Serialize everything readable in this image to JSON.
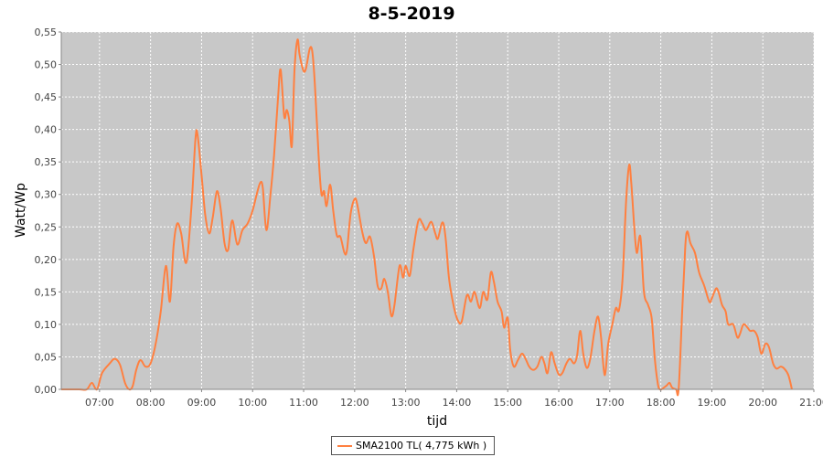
{
  "chart_data": {
    "type": "line",
    "title": "8-5-2019",
    "xlabel": "tijd",
    "ylabel": "Watt/Wp",
    "xlim": [
      6.25,
      21.0
    ],
    "ylim": [
      0,
      0.55
    ],
    "x_ticks": [
      "07:00",
      "08:00",
      "09:00",
      "10:00",
      "11:00",
      "12:00",
      "13:00",
      "14:00",
      "15:00",
      "16:00",
      "17:00",
      "18:00",
      "19:00",
      "20:00",
      "21:00"
    ],
    "y_ticks": [
      "0,00",
      "0,05",
      "0,10",
      "0,15",
      "0,20",
      "0,25",
      "0,30",
      "0,35",
      "0,40",
      "0,45",
      "0,50",
      "0,55"
    ],
    "grid": true,
    "legend_position": "bottom",
    "series": [
      {
        "name": "SMA2100 TL( 4,775 kWh )",
        "color": "#ff8040",
        "points": [
          [
            6.25,
            0.0
          ],
          [
            6.6,
            0.0
          ],
          [
            6.75,
            0.0
          ],
          [
            6.85,
            0.01
          ],
          [
            6.95,
            0.0
          ],
          [
            7.05,
            0.025
          ],
          [
            7.2,
            0.04
          ],
          [
            7.3,
            0.047
          ],
          [
            7.4,
            0.038
          ],
          [
            7.5,
            0.01
          ],
          [
            7.58,
            0.0
          ],
          [
            7.65,
            0.005
          ],
          [
            7.72,
            0.03
          ],
          [
            7.8,
            0.045
          ],
          [
            7.9,
            0.035
          ],
          [
            8.0,
            0.04
          ],
          [
            8.1,
            0.07
          ],
          [
            8.2,
            0.12
          ],
          [
            8.3,
            0.19
          ],
          [
            8.38,
            0.135
          ],
          [
            8.45,
            0.22
          ],
          [
            8.52,
            0.255
          ],
          [
            8.6,
            0.24
          ],
          [
            8.7,
            0.195
          ],
          [
            8.8,
            0.28
          ],
          [
            8.88,
            0.385
          ],
          [
            8.92,
            0.392
          ],
          [
            9.0,
            0.33
          ],
          [
            9.07,
            0.27
          ],
          [
            9.15,
            0.24
          ],
          [
            9.22,
            0.265
          ],
          [
            9.3,
            0.305
          ],
          [
            9.37,
            0.28
          ],
          [
            9.45,
            0.225
          ],
          [
            9.52,
            0.215
          ],
          [
            9.6,
            0.26
          ],
          [
            9.7,
            0.223
          ],
          [
            9.8,
            0.245
          ],
          [
            9.9,
            0.255
          ],
          [
            10.0,
            0.275
          ],
          [
            10.08,
            0.3
          ],
          [
            10.15,
            0.318
          ],
          [
            10.2,
            0.31
          ],
          [
            10.27,
            0.245
          ],
          [
            10.35,
            0.3
          ],
          [
            10.42,
            0.36
          ],
          [
            10.5,
            0.45
          ],
          [
            10.55,
            0.492
          ],
          [
            10.62,
            0.42
          ],
          [
            10.67,
            0.43
          ],
          [
            10.72,
            0.413
          ],
          [
            10.77,
            0.375
          ],
          [
            10.82,
            0.49
          ],
          [
            10.88,
            0.538
          ],
          [
            10.92,
            0.515
          ],
          [
            11.0,
            0.49
          ],
          [
            11.05,
            0.495
          ],
          [
            11.12,
            0.524
          ],
          [
            11.17,
            0.52
          ],
          [
            11.22,
            0.47
          ],
          [
            11.3,
            0.35
          ],
          [
            11.35,
            0.3
          ],
          [
            11.4,
            0.305
          ],
          [
            11.45,
            0.282
          ],
          [
            11.52,
            0.315
          ],
          [
            11.58,
            0.275
          ],
          [
            11.65,
            0.237
          ],
          [
            11.72,
            0.235
          ],
          [
            11.8,
            0.21
          ],
          [
            11.85,
            0.215
          ],
          [
            11.92,
            0.27
          ],
          [
            12.0,
            0.293
          ],
          [
            12.05,
            0.285
          ],
          [
            12.15,
            0.242
          ],
          [
            12.22,
            0.225
          ],
          [
            12.3,
            0.235
          ],
          [
            12.38,
            0.205
          ],
          [
            12.45,
            0.16
          ],
          [
            12.52,
            0.155
          ],
          [
            12.58,
            0.17
          ],
          [
            12.65,
            0.15
          ],
          [
            12.72,
            0.113
          ],
          [
            12.78,
            0.13
          ],
          [
            12.88,
            0.19
          ],
          [
            12.95,
            0.172
          ],
          [
            13.0,
            0.19
          ],
          [
            13.08,
            0.175
          ],
          [
            13.15,
            0.215
          ],
          [
            13.25,
            0.26
          ],
          [
            13.33,
            0.255
          ],
          [
            13.4,
            0.245
          ],
          [
            13.5,
            0.258
          ],
          [
            13.58,
            0.24
          ],
          [
            13.63,
            0.232
          ],
          [
            13.72,
            0.257
          ],
          [
            13.78,
            0.235
          ],
          [
            13.85,
            0.17
          ],
          [
            13.95,
            0.125
          ],
          [
            14.03,
            0.105
          ],
          [
            14.1,
            0.105
          ],
          [
            14.2,
            0.145
          ],
          [
            14.28,
            0.135
          ],
          [
            14.35,
            0.15
          ],
          [
            14.45,
            0.125
          ],
          [
            14.52,
            0.15
          ],
          [
            14.6,
            0.138
          ],
          [
            14.67,
            0.18
          ],
          [
            14.73,
            0.165
          ],
          [
            14.8,
            0.135
          ],
          [
            14.88,
            0.12
          ],
          [
            14.93,
            0.095
          ],
          [
            15.0,
            0.11
          ],
          [
            15.05,
            0.06
          ],
          [
            15.12,
            0.035
          ],
          [
            15.2,
            0.045
          ],
          [
            15.28,
            0.055
          ],
          [
            15.35,
            0.047
          ],
          [
            15.42,
            0.035
          ],
          [
            15.5,
            0.03
          ],
          [
            15.58,
            0.035
          ],
          [
            15.66,
            0.05
          ],
          [
            15.72,
            0.04
          ],
          [
            15.78,
            0.025
          ],
          [
            15.85,
            0.057
          ],
          [
            15.92,
            0.04
          ],
          [
            16.0,
            0.023
          ],
          [
            16.07,
            0.025
          ],
          [
            16.15,
            0.04
          ],
          [
            16.22,
            0.047
          ],
          [
            16.3,
            0.04
          ],
          [
            16.36,
            0.052
          ],
          [
            16.42,
            0.09
          ],
          [
            16.48,
            0.055
          ],
          [
            16.55,
            0.033
          ],
          [
            16.62,
            0.048
          ],
          [
            16.7,
            0.09
          ],
          [
            16.77,
            0.112
          ],
          [
            16.83,
            0.08
          ],
          [
            16.9,
            0.022
          ],
          [
            16.97,
            0.07
          ],
          [
            17.05,
            0.1
          ],
          [
            17.12,
            0.125
          ],
          [
            17.18,
            0.122
          ],
          [
            17.25,
            0.17
          ],
          [
            17.32,
            0.29
          ],
          [
            17.38,
            0.345
          ],
          [
            17.42,
            0.32
          ],
          [
            17.48,
            0.25
          ],
          [
            17.53,
            0.21
          ],
          [
            17.6,
            0.235
          ],
          [
            17.67,
            0.15
          ],
          [
            17.75,
            0.13
          ],
          [
            17.82,
            0.11
          ],
          [
            17.88,
            0.05
          ],
          [
            17.93,
            0.015
          ],
          [
            17.98,
            0.0
          ],
          [
            18.1,
            0.005
          ],
          [
            18.17,
            0.01
          ],
          [
            18.22,
            0.003
          ],
          [
            18.3,
            0.0
          ],
          [
            18.35,
            0.0
          ],
          [
            18.42,
            0.12
          ],
          [
            18.48,
            0.22
          ],
          [
            18.52,
            0.243
          ],
          [
            18.58,
            0.225
          ],
          [
            18.67,
            0.21
          ],
          [
            18.75,
            0.18
          ],
          [
            18.85,
            0.16
          ],
          [
            18.95,
            0.135
          ],
          [
            19.0,
            0.14
          ],
          [
            19.08,
            0.155
          ],
          [
            19.13,
            0.15
          ],
          [
            19.2,
            0.13
          ],
          [
            19.27,
            0.12
          ],
          [
            19.32,
            0.1
          ],
          [
            19.42,
            0.1
          ],
          [
            19.5,
            0.08
          ],
          [
            19.55,
            0.085
          ],
          [
            19.62,
            0.1
          ],
          [
            19.7,
            0.095
          ],
          [
            19.75,
            0.09
          ],
          [
            19.83,
            0.09
          ],
          [
            19.9,
            0.08
          ],
          [
            19.97,
            0.055
          ],
          [
            20.05,
            0.07
          ],
          [
            20.12,
            0.065
          ],
          [
            20.2,
            0.04
          ],
          [
            20.27,
            0.032
          ],
          [
            20.35,
            0.035
          ],
          [
            20.42,
            0.032
          ],
          [
            20.5,
            0.022
          ],
          [
            20.57,
            0.0
          ]
        ]
      }
    ]
  }
}
